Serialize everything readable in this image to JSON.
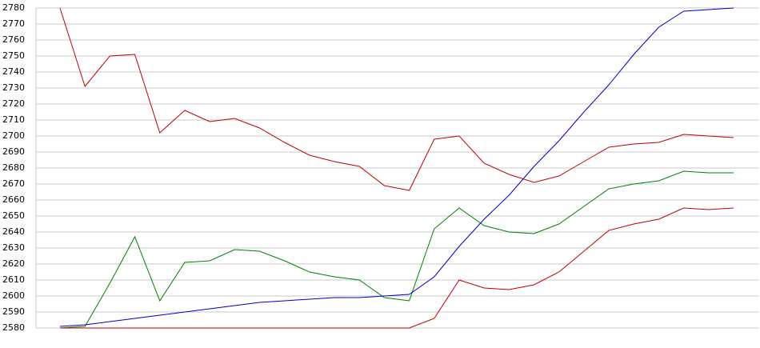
{
  "chart_data": {
    "type": "line",
    "categories": [
      null,
      null,
      null,
      null,
      null,
      null,
      null,
      null,
      null,
      null,
      null,
      null,
      null,
      null,
      null,
      null,
      null,
      null,
      null,
      null,
      null,
      null,
      null,
      null,
      null,
      null,
      null,
      null
    ],
    "series": [
      {
        "color": "#c00000",
        "values": [
          2780,
          2731,
          2750,
          2751,
          2702,
          2716,
          2709,
          2711,
          2705,
          2696,
          2688,
          2684,
          2681,
          2669,
          2666,
          2698,
          2700,
          2683,
          2676,
          2671,
          2675,
          2684,
          2693,
          2695,
          2696,
          2701,
          2700,
          2699
        ]
      },
      {
        "color": "#008000",
        "values": [
          2580,
          2581,
          2608,
          2637,
          2597,
          2621,
          2622,
          2629,
          2628,
          2622,
          2615,
          2612,
          2610,
          2599,
          2597,
          2642,
          2655,
          2644,
          2640,
          2639,
          2645,
          2656,
          2667,
          2670,
          2672,
          2678,
          2677,
          2677
        ]
      },
      {
        "color": "#c00000",
        "values": [
          2580,
          2580,
          2580,
          2580,
          2580,
          2580,
          2580,
          2580,
          2580,
          2580,
          2580,
          2580,
          2580,
          2580,
          2580,
          2586,
          2610,
          2605,
          2604,
          2607,
          2615,
          2628,
          2641,
          2645,
          2648,
          2655,
          2654,
          2655
        ]
      },
      {
        "color": "#0000c0",
        "values": [
          2581,
          2582,
          2584,
          2586,
          2588,
          2590,
          2592,
          2594,
          2596,
          2597,
          2598,
          2599,
          2599,
          2600,
          2601,
          2612,
          2631,
          2648,
          2663,
          2681,
          2697,
          2715,
          2732,
          2751,
          2768,
          2778,
          2779,
          2780
        ]
      }
    ],
    "ylim": [
      2580,
      2780
    ],
    "yticks": [
      2580,
      2590,
      2600,
      2610,
      2620,
      2630,
      2640,
      2650,
      2660,
      2670,
      2680,
      2690,
      2700,
      2710,
      2720,
      2730,
      2740,
      2750,
      2760,
      2770,
      2780
    ],
    "grid": true
  }
}
